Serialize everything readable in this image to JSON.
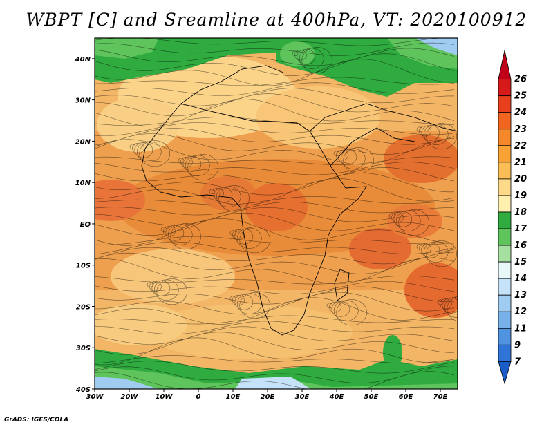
{
  "title": "WBPT [C] and Sreamline at 400hPa, VT: 2020100912",
  "footer": "GrADS: IGES/COLA",
  "map": {
    "lon_range": [
      -30,
      75
    ],
    "lat_range": [
      -40,
      45
    ],
    "lat_ticks": [
      {
        "value": 40,
        "label": "40N"
      },
      {
        "value": 30,
        "label": "30N"
      },
      {
        "value": 20,
        "label": "20N"
      },
      {
        "value": 10,
        "label": "10N"
      },
      {
        "value": 0,
        "label": "EQ"
      },
      {
        "value": -10,
        "label": "10S"
      },
      {
        "value": -20,
        "label": "20S"
      },
      {
        "value": -30,
        "label": "30S"
      },
      {
        "value": -40,
        "label": "40S"
      }
    ],
    "lon_ticks": [
      {
        "value": -30,
        "label": "30W"
      },
      {
        "value": -20,
        "label": "20W"
      },
      {
        "value": -10,
        "label": "10W"
      },
      {
        "value": 0,
        "label": "0"
      },
      {
        "value": 10,
        "label": "10E"
      },
      {
        "value": 20,
        "label": "20E"
      },
      {
        "value": 30,
        "label": "30E"
      },
      {
        "value": 40,
        "label": "40E"
      },
      {
        "value": 50,
        "label": "50E"
      },
      {
        "value": 60,
        "label": "60E"
      },
      {
        "value": 70,
        "label": "70E"
      }
    ]
  },
  "colorbar": {
    "labels": [
      "26",
      "25",
      "24",
      "23",
      "22",
      "21",
      "20",
      "19",
      "18",
      "17",
      "16",
      "15",
      "14",
      "13",
      "12",
      "11",
      "9",
      "7"
    ],
    "colors": [
      "#c0001a",
      "#d61a1a",
      "#e8401c",
      "#f06620",
      "#f5882a",
      "#f8a235",
      "#fbbd55",
      "#fdd98a",
      "#fff0b0",
      "#2fab3f",
      "#5fc45c",
      "#a5e0a0",
      "#e8f8f8",
      "#c5e2f8",
      "#a0ccf2",
      "#78b0ea",
      "#5093e0",
      "#2f74d6",
      "#1a5cc8"
    ]
  }
}
